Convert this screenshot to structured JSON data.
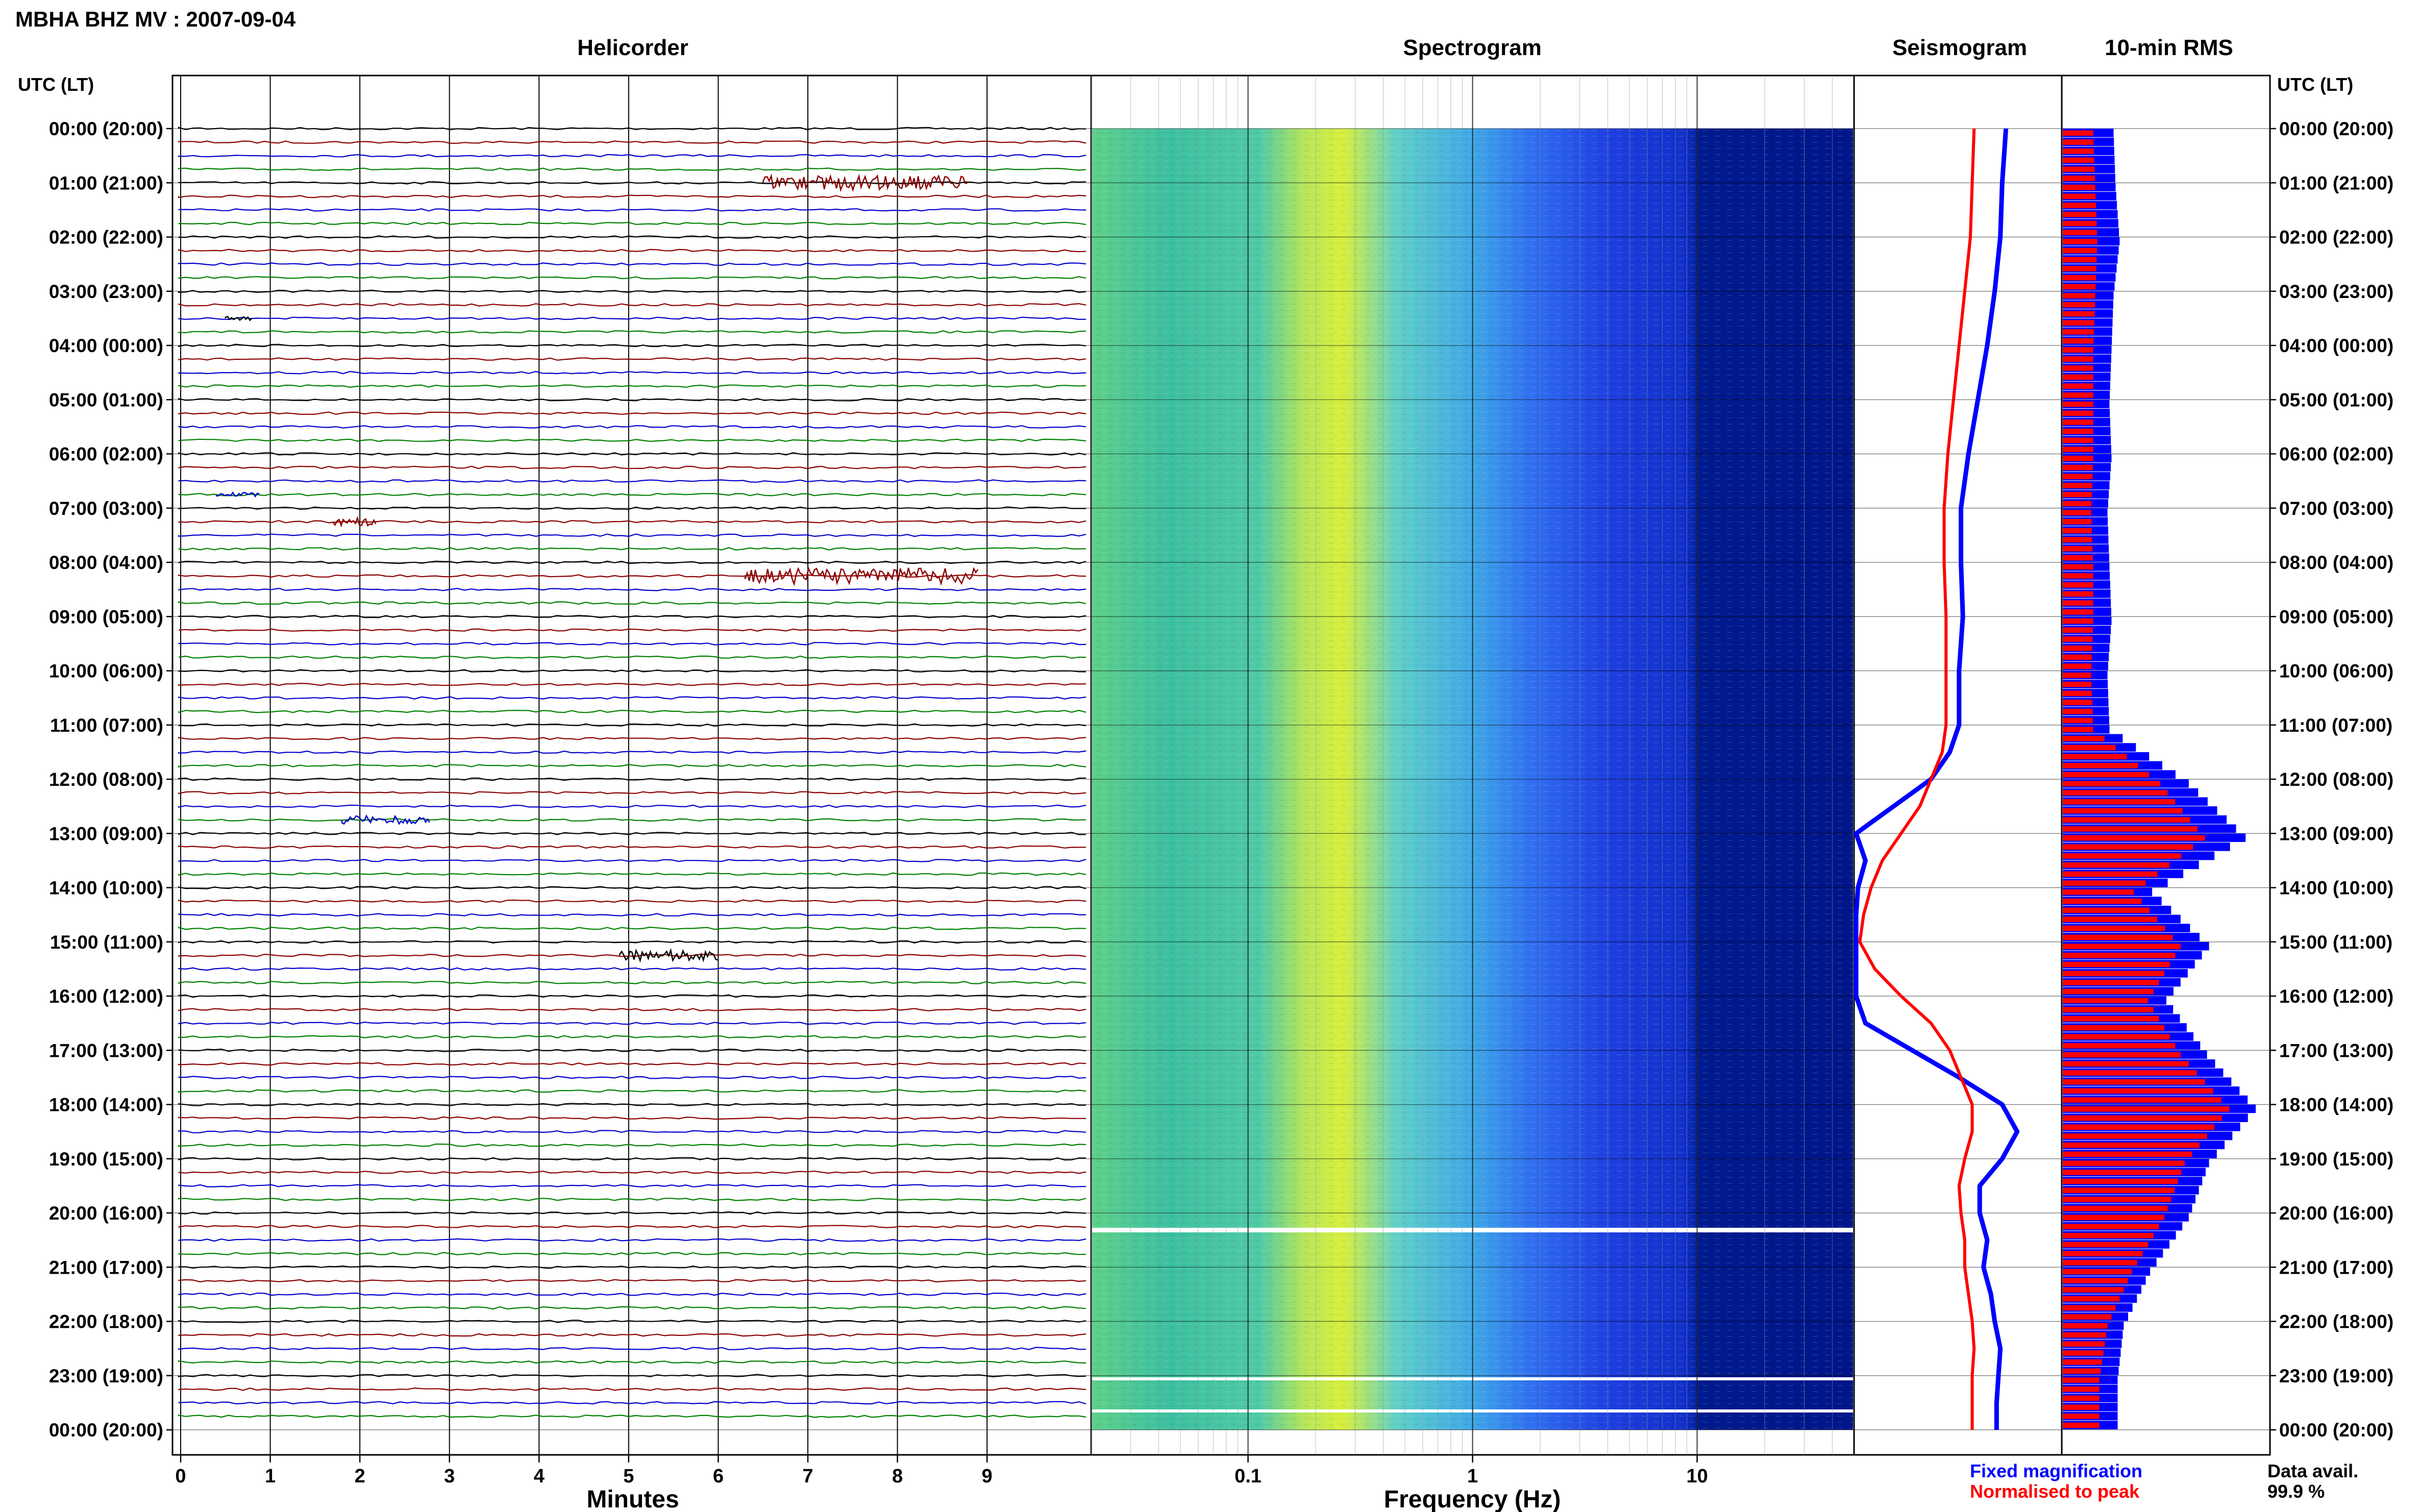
{
  "title": "MBHA BHZ MV : 2007-09-04",
  "panels": {
    "helicorder": "Helicorder",
    "spectrogram": "Spectrogram",
    "seismogram": "Seismogram",
    "rms": "10-min RMS"
  },
  "axis_label_left": "UTC (LT)",
  "axis_label_right": "UTC (LT)",
  "hour_labels": [
    "00:00 (20:00)",
    "01:00 (21:00)",
    "02:00 (22:00)",
    "03:00 (23:00)",
    "04:00 (00:00)",
    "05:00 (01:00)",
    "06:00 (02:00)",
    "07:00 (03:00)",
    "08:00 (04:00)",
    "09:00 (05:00)",
    "10:00 (06:00)",
    "11:00 (07:00)",
    "12:00 (08:00)",
    "13:00 (09:00)",
    "14:00 (10:00)",
    "15:00 (11:00)",
    "16:00 (12:00)",
    "17:00 (13:00)",
    "18:00 (14:00)",
    "19:00 (15:00)",
    "20:00 (16:00)",
    "21:00 (17:00)",
    "22:00 (18:00)",
    "23:00 (19:00)",
    "00:00 (20:00)"
  ],
  "helicorder_xlabel": "Minutes",
  "helicorder_ticks": [
    "0",
    "1",
    "2",
    "3",
    "4",
    "5",
    "6",
    "7",
    "8",
    "9"
  ],
  "spectrogram_xlabel": "Frequency (Hz)",
  "spectrogram_ticks": [
    "0.1",
    "1",
    "10"
  ],
  "legend": {
    "fixed": "Fixed magnification",
    "normalised": "Normalised to peak",
    "fixed_color": "#0000ff",
    "normalised_color": "#ff0000"
  },
  "data_avail_label": "Data avail.",
  "data_avail_value": "99.9 %",
  "colors": {
    "trace_cycle": [
      "#000000",
      "#8b0000",
      "#0000cd",
      "#008000"
    ]
  },
  "chart_data": [
    {
      "type": "line",
      "title": "Seismogram",
      "x_unit": "hour (UTC)",
      "x": [
        0,
        1,
        2,
        3,
        4,
        5,
        6,
        7,
        8,
        9,
        10,
        11,
        11.5,
        12,
        12.5,
        13,
        13.5,
        14,
        14.5,
        15,
        15.5,
        16,
        16.5,
        17,
        17.5,
        18,
        18.5,
        19,
        19.5,
        20,
        20.5,
        21,
        21.5,
        22,
        22.5,
        23,
        23.5,
        24
      ],
      "series": [
        {
          "name": "Fixed magnification",
          "values": [
            0.8,
            0.78,
            0.77,
            0.74,
            0.7,
            0.65,
            0.6,
            0.56,
            0.56,
            0.57,
            0.55,
            0.55,
            0.5,
            0.4,
            0.2,
            0.0,
            0.05,
            0.01,
            0.0,
            0.0,
            0.0,
            0.0,
            0.05,
            0.3,
            0.55,
            0.78,
            0.86,
            0.78,
            0.66,
            0.66,
            0.7,
            0.68,
            0.72,
            0.74,
            0.77,
            0.76,
            0.75,
            0.75
          ]
        },
        {
          "name": "Normalised to peak",
          "values": [
            0.63,
            0.62,
            0.61,
            0.58,
            0.55,
            0.52,
            0.49,
            0.47,
            0.47,
            0.48,
            0.48,
            0.48,
            0.46,
            0.4,
            0.34,
            0.24,
            0.14,
            0.08,
            0.04,
            0.02,
            0.1,
            0.24,
            0.4,
            0.5,
            0.56,
            0.62,
            0.62,
            0.58,
            0.55,
            0.56,
            0.58,
            0.58,
            0.6,
            0.62,
            0.63,
            0.62,
            0.62,
            0.62
          ]
        }
      ]
    },
    {
      "type": "bar",
      "title": "10-min RMS",
      "x_unit": "hour (UTC)",
      "series": [
        {
          "name": "Fixed magnification",
          "values": [
            0.25,
            0.26,
            0.28,
            0.25,
            0.24,
            0.23,
            0.24,
            0.22,
            0.23,
            0.24,
            0.22,
            0.23,
            0.62,
            0.9,
            0.44,
            0.72,
            0.51,
            0.71,
            0.95,
            0.72,
            0.62,
            0.43,
            0.3,
            0.27,
            0.27
          ]
        },
        {
          "name": "Normalised to peak",
          "values": [
            0.15,
            0.16,
            0.17,
            0.16,
            0.15,
            0.15,
            0.15,
            0.14,
            0.15,
            0.15,
            0.14,
            0.15,
            0.48,
            0.7,
            0.35,
            0.58,
            0.42,
            0.58,
            0.82,
            0.6,
            0.5,
            0.34,
            0.22,
            0.18,
            0.18
          ]
        }
      ]
    }
  ]
}
